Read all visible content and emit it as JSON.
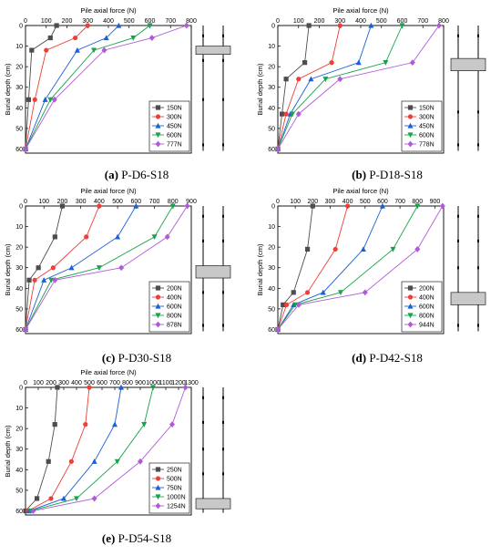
{
  "figure": {
    "charts": [
      {
        "caption_letter": "(a)",
        "caption_text": " P-D6-S18",
        "xlabel": "Pile axial force (N)",
        "ylabel": "Burial depth (cm)",
        "xticks": [
          0,
          100,
          200,
          300,
          400,
          500,
          600,
          700,
          800
        ],
        "yticks": [
          0,
          10,
          20,
          30,
          40,
          50,
          60
        ],
        "xlim": [
          0,
          800
        ],
        "ylim": [
          0,
          62
        ],
        "legend": "bottom-right",
        "shaded_depth": [
          10,
          14
        ],
        "pile_marks": [
          5,
          17,
          36,
          58
        ],
        "series": [
          {
            "name": "150N",
            "color": "#4d4d4d",
            "marker": "square",
            "x": [
              150,
              120,
              30,
              15,
              0
            ],
            "y": [
              0,
              6,
              12,
              36,
              60
            ]
          },
          {
            "name": "300N",
            "color": "#ef3e36",
            "marker": "circle",
            "x": [
              300,
              240,
              100,
              45,
              0
            ],
            "y": [
              0,
              6,
              12,
              36,
              60
            ]
          },
          {
            "name": "450N",
            "color": "#1a5fd6",
            "marker": "triangle",
            "x": [
              450,
              390,
              250,
              95,
              0
            ],
            "y": [
              0,
              6,
              12,
              36,
              60
            ]
          },
          {
            "name": "600N",
            "color": "#17a34a",
            "marker": "triangle-down",
            "x": [
              600,
              520,
              330,
              120,
              0
            ],
            "y": [
              0,
              6,
              12,
              36,
              60
            ]
          },
          {
            "name": "777N",
            "color": "#b05ad8",
            "marker": "diamond",
            "x": [
              777,
              610,
              380,
              140,
              0
            ],
            "y": [
              0,
              6,
              12,
              36,
              60
            ]
          }
        ]
      },
      {
        "caption_letter": "(b)",
        "caption_text": " P-D18-S18",
        "xlabel": "Pile axial force (N)",
        "ylabel": "Burial depth (cm)",
        "xticks": [
          0,
          100,
          200,
          300,
          400,
          500,
          600,
          700,
          800
        ],
        "yticks": [
          0,
          10,
          20,
          30,
          40,
          50,
          60
        ],
        "xlim": [
          0,
          800
        ],
        "ylim": [
          0,
          62
        ],
        "legend": "bottom-right",
        "shaded_depth": [
          16,
          22
        ],
        "pile_marks": [
          5,
          17,
          42,
          58
        ],
        "series": [
          {
            "name": "150N",
            "color": "#4d4d4d",
            "marker": "square",
            "x": [
              150,
              130,
              40,
              20,
              0
            ],
            "y": [
              0,
              18,
              26,
              43,
              60
            ]
          },
          {
            "name": "300N",
            "color": "#ef3e36",
            "marker": "circle",
            "x": [
              300,
              260,
              100,
              40,
              0
            ],
            "y": [
              0,
              18,
              26,
              43,
              60
            ]
          },
          {
            "name": "450N",
            "color": "#1a5fd6",
            "marker": "triangle",
            "x": [
              450,
              390,
              160,
              60,
              0
            ],
            "y": [
              0,
              18,
              26,
              43,
              60
            ]
          },
          {
            "name": "600N",
            "color": "#17a34a",
            "marker": "triangle-down",
            "x": [
              600,
              520,
              230,
              70,
              0
            ],
            "y": [
              0,
              18,
              26,
              43,
              60
            ]
          },
          {
            "name": "778N",
            "color": "#b05ad8",
            "marker": "diamond",
            "x": [
              778,
              650,
              300,
              100,
              0
            ],
            "y": [
              0,
              18,
              26,
              43,
              60
            ]
          }
        ]
      },
      {
        "caption_letter": "(c)",
        "caption_text": " P-D30-S18",
        "xlabel": "Pile axial force (N)",
        "ylabel": "Burial depth (cm)",
        "xticks": [
          0,
          100,
          200,
          300,
          400,
          500,
          600,
          700,
          800,
          900
        ],
        "yticks": [
          0,
          10,
          20,
          30,
          40,
          50,
          60
        ],
        "xlim": [
          0,
          900
        ],
        "ylim": [
          0,
          62
        ],
        "legend": "bottom-right",
        "shaded_depth": [
          29,
          35
        ],
        "pile_marks": [
          5,
          17,
          42,
          58
        ],
        "series": [
          {
            "name": "200N",
            "color": "#4d4d4d",
            "marker": "square",
            "x": [
              200,
              160,
              70,
              20,
              0
            ],
            "y": [
              0,
              15,
              30,
              36,
              60
            ]
          },
          {
            "name": "400N",
            "color": "#ef3e36",
            "marker": "circle",
            "x": [
              400,
              330,
              150,
              50,
              0
            ],
            "y": [
              0,
              15,
              30,
              36,
              60
            ]
          },
          {
            "name": "600N",
            "color": "#1a5fd6",
            "marker": "triangle",
            "x": [
              600,
              500,
              250,
              100,
              0
            ],
            "y": [
              0,
              15,
              30,
              36,
              60
            ]
          },
          {
            "name": "800N",
            "color": "#17a34a",
            "marker": "triangle-down",
            "x": [
              800,
              700,
              400,
              140,
              0
            ],
            "y": [
              0,
              15,
              30,
              36,
              60
            ]
          },
          {
            "name": "878N",
            "color": "#b05ad8",
            "marker": "diamond",
            "x": [
              878,
              770,
              520,
              160,
              0
            ],
            "y": [
              0,
              15,
              30,
              36,
              60
            ]
          }
        ]
      },
      {
        "caption_letter": "(d)",
        "caption_text": " P-D42-S18",
        "xlabel": "Pile axial force (N)",
        "ylabel": "Burial depth (cm)",
        "xticks": [
          0,
          100,
          200,
          300,
          400,
          500,
          600,
          700,
          800,
          900
        ],
        "yticks": [
          0,
          10,
          20,
          30,
          40,
          50,
          60
        ],
        "xlim": [
          0,
          950
        ],
        "ylim": [
          0,
          62
        ],
        "legend": "bottom-right",
        "shaded_depth": [
          42,
          48
        ],
        "pile_marks": [
          5,
          17,
          30,
          58
        ],
        "series": [
          {
            "name": "200N",
            "color": "#4d4d4d",
            "marker": "square",
            "x": [
              200,
              170,
              90,
              30,
              0
            ],
            "y": [
              0,
              21,
              42,
              48,
              60
            ]
          },
          {
            "name": "400N",
            "color": "#ef3e36",
            "marker": "circle",
            "x": [
              400,
              330,
              170,
              50,
              0
            ],
            "y": [
              0,
              21,
              42,
              48,
              60
            ]
          },
          {
            "name": "600N",
            "color": "#1a5fd6",
            "marker": "triangle",
            "x": [
              600,
              490,
              260,
              90,
              0
            ],
            "y": [
              0,
              21,
              42,
              48,
              60
            ]
          },
          {
            "name": "800N",
            "color": "#17a34a",
            "marker": "triangle-down",
            "x": [
              800,
              660,
              360,
              100,
              0
            ],
            "y": [
              0,
              21,
              42,
              48,
              60
            ]
          },
          {
            "name": "944N",
            "color": "#b05ad8",
            "marker": "diamond",
            "x": [
              944,
              800,
              500,
              120,
              0
            ],
            "y": [
              0,
              21,
              42,
              48,
              60
            ]
          }
        ]
      },
      {
        "caption_letter": "(e)",
        "caption_text": " P-D54-S18",
        "xlabel": "Pile axial force (N)",
        "ylabel": "Burial depth (cm)",
        "xticks": [
          0,
          100,
          200,
          300,
          400,
          500,
          600,
          700,
          800,
          900,
          1000,
          1100,
          1200,
          1300
        ],
        "yticks": [
          0,
          10,
          20,
          30,
          40,
          50,
          60
        ],
        "xlim": [
          0,
          1300
        ],
        "ylim": [
          0,
          62
        ],
        "legend": "bottom-right",
        "shaded_depth": [
          54,
          59
        ],
        "pile_marks": [
          5,
          17,
          30,
          42
        ],
        "series": [
          {
            "name": "250N",
            "color": "#4d4d4d",
            "marker": "square",
            "x": [
              250,
              230,
              180,
              90,
              0
            ],
            "y": [
              0,
              18,
              36,
              54,
              60
            ]
          },
          {
            "name": "500N",
            "color": "#ef3e36",
            "marker": "circle",
            "x": [
              500,
              470,
              360,
              200,
              20
            ],
            "y": [
              0,
              18,
              36,
              54,
              60
            ]
          },
          {
            "name": "750N",
            "color": "#1a5fd6",
            "marker": "triangle",
            "x": [
              750,
              700,
              540,
              300,
              30
            ],
            "y": [
              0,
              18,
              36,
              54,
              60
            ]
          },
          {
            "name": "1000N",
            "color": "#17a34a",
            "marker": "triangle-down",
            "x": [
              1000,
              930,
              720,
              400,
              40
            ],
            "y": [
              0,
              18,
              36,
              54,
              60
            ]
          },
          {
            "name": "1254N",
            "color": "#b05ad8",
            "marker": "diamond",
            "x": [
              1254,
              1150,
              900,
              540,
              60
            ],
            "y": [
              0,
              18,
              36,
              54,
              60
            ]
          }
        ]
      }
    ]
  }
}
